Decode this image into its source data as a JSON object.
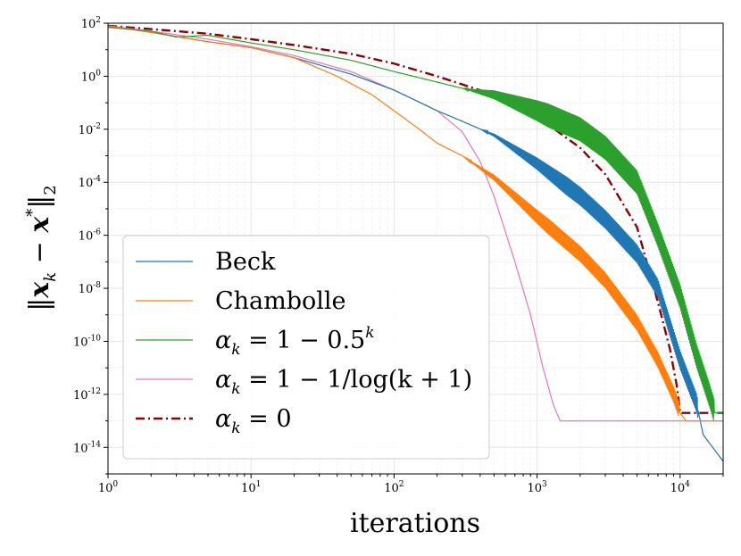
{
  "chart_data": {
    "type": "line",
    "xscale": "log",
    "yscale": "log",
    "xlabel": "iterations",
    "ylabel": "‖x_k − x*‖₂",
    "xlim": [
      1,
      20000
    ],
    "ylim": [
      1e-15,
      100
    ],
    "x_ticks": [
      {
        "value": 1,
        "label": "10",
        "exp": "0"
      },
      {
        "value": 10,
        "label": "10",
        "exp": "1"
      },
      {
        "value": 100,
        "label": "10",
        "exp": "2"
      },
      {
        "value": 1000,
        "label": "10",
        "exp": "3"
      },
      {
        "value": 10000,
        "label": "10",
        "exp": "4"
      }
    ],
    "y_ticks": [
      {
        "value": 100,
        "label": "10",
        "exp": "2"
      },
      {
        "value": 1,
        "label": "10",
        "exp": "0"
      },
      {
        "value": 0.01,
        "label": "10",
        "exp": "-2"
      },
      {
        "value": 0.0001,
        "label": "10",
        "exp": "-4"
      },
      {
        "value": 1e-06,
        "label": "10",
        "exp": "-6"
      },
      {
        "value": 1e-08,
        "label": "10",
        "exp": "-8"
      },
      {
        "value": 1e-10,
        "label": "10",
        "exp": "-10"
      },
      {
        "value": 1e-12,
        "label": "10",
        "exp": "-12"
      },
      {
        "value": 1e-14,
        "label": "10",
        "exp": "-14"
      }
    ],
    "grid": true,
    "legend_position": "lower-left",
    "series": [
      {
        "name": "Beck",
        "color": "#1f77b4",
        "style": "solid",
        "osc_start": 400,
        "osc_amp": 0.35,
        "points": [
          [
            1,
            80
          ],
          [
            2,
            45
          ],
          [
            5,
            20
          ],
          [
            10,
            12
          ],
          [
            20,
            5
          ],
          [
            50,
            1.2
          ],
          [
            100,
            0.3
          ],
          [
            200,
            0.05
          ],
          [
            300,
            0.02
          ],
          [
            500,
            0.006
          ],
          [
            1000,
            0.0005
          ],
          [
            2000,
            3e-05
          ],
          [
            3000,
            4e-06
          ],
          [
            5000,
            2e-07
          ],
          [
            7000,
            1e-08
          ],
          [
            10000,
            2e-11
          ],
          [
            13000,
            5e-13
          ],
          [
            14500,
            3e-14
          ],
          [
            20000,
            3e-15
          ]
        ]
      },
      {
        "name": "Chambolle",
        "color": "#ff7f0e",
        "style": "solid",
        "osc_start": 300,
        "osc_amp": 0.3,
        "points": [
          [
            1,
            80
          ],
          [
            2,
            45
          ],
          [
            5,
            20
          ],
          [
            10,
            12
          ],
          [
            20,
            5
          ],
          [
            40,
            1
          ],
          [
            70,
            0.2
          ],
          [
            100,
            0.05
          ],
          [
            150,
            0.01
          ],
          [
            200,
            0.003
          ],
          [
            300,
            0.001
          ],
          [
            500,
            0.00015
          ],
          [
            1000,
            5e-06
          ],
          [
            2000,
            2e-07
          ],
          [
            3000,
            2e-08
          ],
          [
            5000,
            5e-10
          ],
          [
            7000,
            2e-11
          ],
          [
            9000,
            1e-12
          ],
          [
            10000,
            2e-13
          ],
          [
            11000,
            1e-13
          ],
          [
            20000,
            1e-13
          ]
        ]
      },
      {
        "name": "α_k = 1 − 0.5^k",
        "color": "#2ca02c",
        "style": "solid",
        "osc_start": 300,
        "osc_amp": 0.45,
        "points": [
          [
            1,
            70
          ],
          [
            2,
            50
          ],
          [
            3,
            30
          ],
          [
            5,
            35
          ],
          [
            10,
            18
          ],
          [
            20,
            10
          ],
          [
            50,
            4
          ],
          [
            100,
            1.5
          ],
          [
            200,
            0.6
          ],
          [
            300,
            0.35
          ],
          [
            500,
            0.2
          ],
          [
            1000,
            0.05
          ],
          [
            2000,
            0.01
          ],
          [
            3000,
            0.002
          ],
          [
            5000,
            0.0001
          ],
          [
            7000,
            1e-06
          ],
          [
            10000,
            5e-09
          ],
          [
            13000,
            3e-11
          ],
          [
            16000,
            1e-12
          ],
          [
            17500,
            2e-13
          ],
          [
            20000,
            2e-13
          ]
        ]
      },
      {
        "name": "α_k = 1 − 1/log(k+1)",
        "color": "#e377c2",
        "style": "solid",
        "osc_start": 0,
        "osc_amp": 0,
        "points": [
          [
            1,
            80
          ],
          [
            2,
            50
          ],
          [
            5,
            25
          ],
          [
            10,
            13
          ],
          [
            20,
            6
          ],
          [
            50,
            1.5
          ],
          [
            100,
            0.3
          ],
          [
            200,
            0.05
          ],
          [
            300,
            0.008
          ],
          [
            400,
            0.0006
          ],
          [
            500,
            3e-05
          ],
          [
            700,
            1e-07
          ],
          [
            900,
            1e-09
          ],
          [
            1100,
            1e-11
          ],
          [
            1300,
            4e-13
          ],
          [
            1450,
            1e-13
          ],
          [
            20000,
            1e-13
          ]
        ]
      },
      {
        "name": "α_k = 0",
        "color": "#8b0000",
        "style": "dashdot",
        "osc_start": 0,
        "osc_amp": 0,
        "points": [
          [
            1,
            80
          ],
          [
            2,
            60
          ],
          [
            5,
            40
          ],
          [
            10,
            25
          ],
          [
            20,
            15
          ],
          [
            50,
            7
          ],
          [
            100,
            3
          ],
          [
            200,
            1
          ],
          [
            500,
            0.2
          ],
          [
            1000,
            0.03
          ],
          [
            2000,
            0.002
          ],
          [
            3000,
            0.0002
          ],
          [
            5000,
            2e-06
          ],
          [
            7000,
            3e-09
          ],
          [
            8500,
            5e-11
          ],
          [
            9500,
            2e-12
          ],
          [
            10000,
            2e-13
          ],
          [
            20000,
            2e-13
          ]
        ]
      }
    ],
    "legend": [
      {
        "label": "Beck"
      },
      {
        "label": "Chambolle"
      },
      {
        "label": "α = 1 − 0.5",
        "sub": "k",
        "sup": "k"
      },
      {
        "label": "α = 1 − 1/log(k + 1)",
        "sub": "k"
      },
      {
        "label": "α = 0",
        "sub": "k"
      }
    ]
  }
}
